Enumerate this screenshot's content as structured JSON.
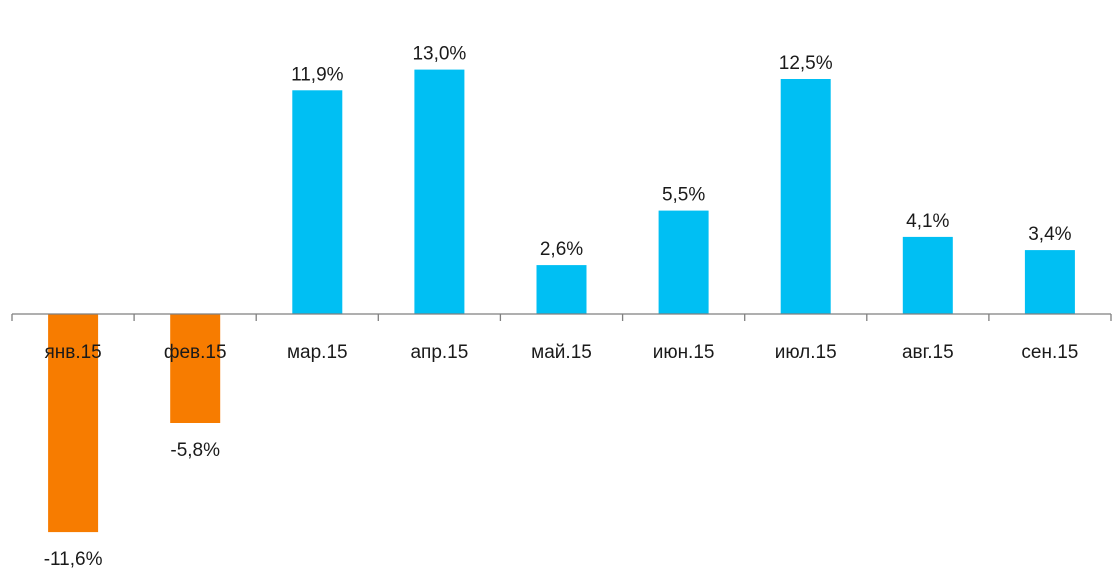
{
  "chart_data": {
    "type": "bar",
    "categories": [
      "янв.15",
      "фев.15",
      "мар.15",
      "апр.15",
      "май.15",
      "июн.15",
      "июл.15",
      "авг.15",
      "сен.15"
    ],
    "values": [
      -11.6,
      -5.8,
      11.9,
      13.0,
      2.6,
      5.5,
      12.5,
      4.1,
      3.4
    ],
    "data_labels": [
      "-11,6%",
      "-5,8%",
      "11,9%",
      "13,0%",
      "2,6%",
      "5,5%",
      "12,5%",
      "4,1%",
      "3,4%"
    ],
    "title": "",
    "xlabel": "",
    "ylabel": "",
    "grid": false,
    "legend": "none",
    "colors": {
      "positive": "#00BFF3",
      "negative": "#F77C00",
      "axis": "#7f7f7f",
      "text": "#1a1a1a"
    }
  }
}
